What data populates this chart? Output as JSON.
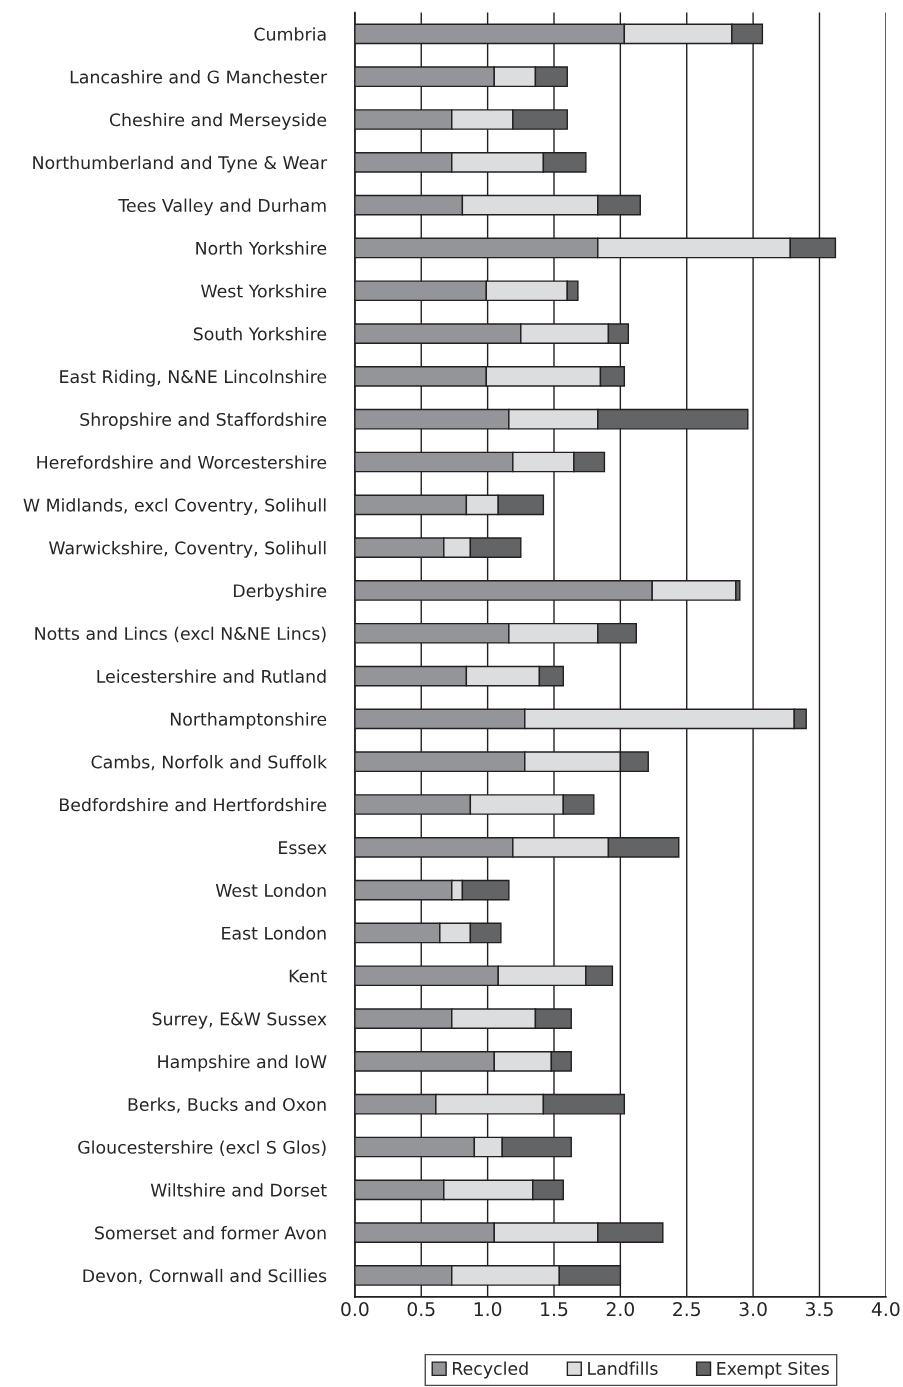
{
  "chart_data": {
    "type": "bar",
    "orientation": "horizontal",
    "stacked": true,
    "categories": [
      "Cumbria",
      "Lancashire and G Manchester",
      "Cheshire and Merseyside",
      "Northumberland and Tyne & Wear",
      "Tees Valley and Durham",
      "North Yorkshire",
      "West Yorkshire",
      "South Yorkshire",
      "East Riding, N&NE Lincolnshire",
      "Shropshire and Staffordshire",
      "Herefordshire and Worcestershire",
      "W Midlands, excl Coventry, Solihull",
      "Warwickshire, Coventry, Solihull",
      "Derbyshire",
      "Notts and Lincs (excl N&NE Lincs)",
      "Leicestershire and Rutland",
      "Northamptonshire",
      "Cambs, Norfolk and Suffolk",
      "Bedfordshire and Hertfordshire",
      "Essex",
      "West London",
      "East London",
      "Kent",
      "Surrey, E&W Sussex",
      "Hampshire and IoW",
      "Berks, Bucks and Oxon",
      "Gloucestershire (excl S Glos)",
      "Wiltshire and Dorset",
      "Somerset and former Avon",
      "Devon, Cornwall and Scillies"
    ],
    "series": [
      {
        "name": "Recycled",
        "color": "#939598",
        "values": [
          2.03,
          1.05,
          0.73,
          0.73,
          0.81,
          1.83,
          0.99,
          1.25,
          0.99,
          1.16,
          1.19,
          0.84,
          0.67,
          2.24,
          1.16,
          0.84,
          1.28,
          1.28,
          0.87,
          1.19,
          0.73,
          0.64,
          1.08,
          0.73,
          1.05,
          0.61,
          0.9,
          0.67,
          1.05,
          0.73
        ]
      },
      {
        "name": "Landfills",
        "color": "#dcddde",
        "values": [
          0.81,
          0.31,
          0.46,
          0.69,
          1.02,
          1.45,
          0.61,
          0.66,
          0.86,
          0.67,
          0.46,
          0.24,
          0.2,
          0.63,
          0.67,
          0.55,
          2.03,
          0.72,
          0.7,
          0.72,
          0.08,
          0.23,
          0.66,
          0.63,
          0.43,
          0.81,
          0.21,
          0.67,
          0.78,
          0.81
        ]
      },
      {
        "name": "Exempt Sites",
        "color": "#636466",
        "values": [
          0.23,
          0.24,
          0.41,
          0.32,
          0.32,
          0.34,
          0.08,
          0.15,
          0.18,
          1.13,
          0.23,
          0.34,
          0.38,
          0.03,
          0.29,
          0.18,
          0.09,
          0.21,
          0.23,
          0.53,
          0.35,
          0.23,
          0.2,
          0.27,
          0.15,
          0.61,
          0.52,
          0.23,
          0.49,
          0.46
        ]
      }
    ],
    "xlim": [
      0,
      4
    ],
    "xticks": [
      {
        "value": 0,
        "label": "0.0"
      },
      0.5,
      {
        "value": 1,
        "label": "1.0"
      },
      1.5,
      {
        "value": 2,
        "label": "2.0"
      },
      2.5,
      {
        "value": 3,
        "label": "3.0"
      },
      3.5,
      {
        "value": 4,
        "label": "4.0"
      }
    ],
    "grid": "x",
    "legend": "bottom"
  }
}
